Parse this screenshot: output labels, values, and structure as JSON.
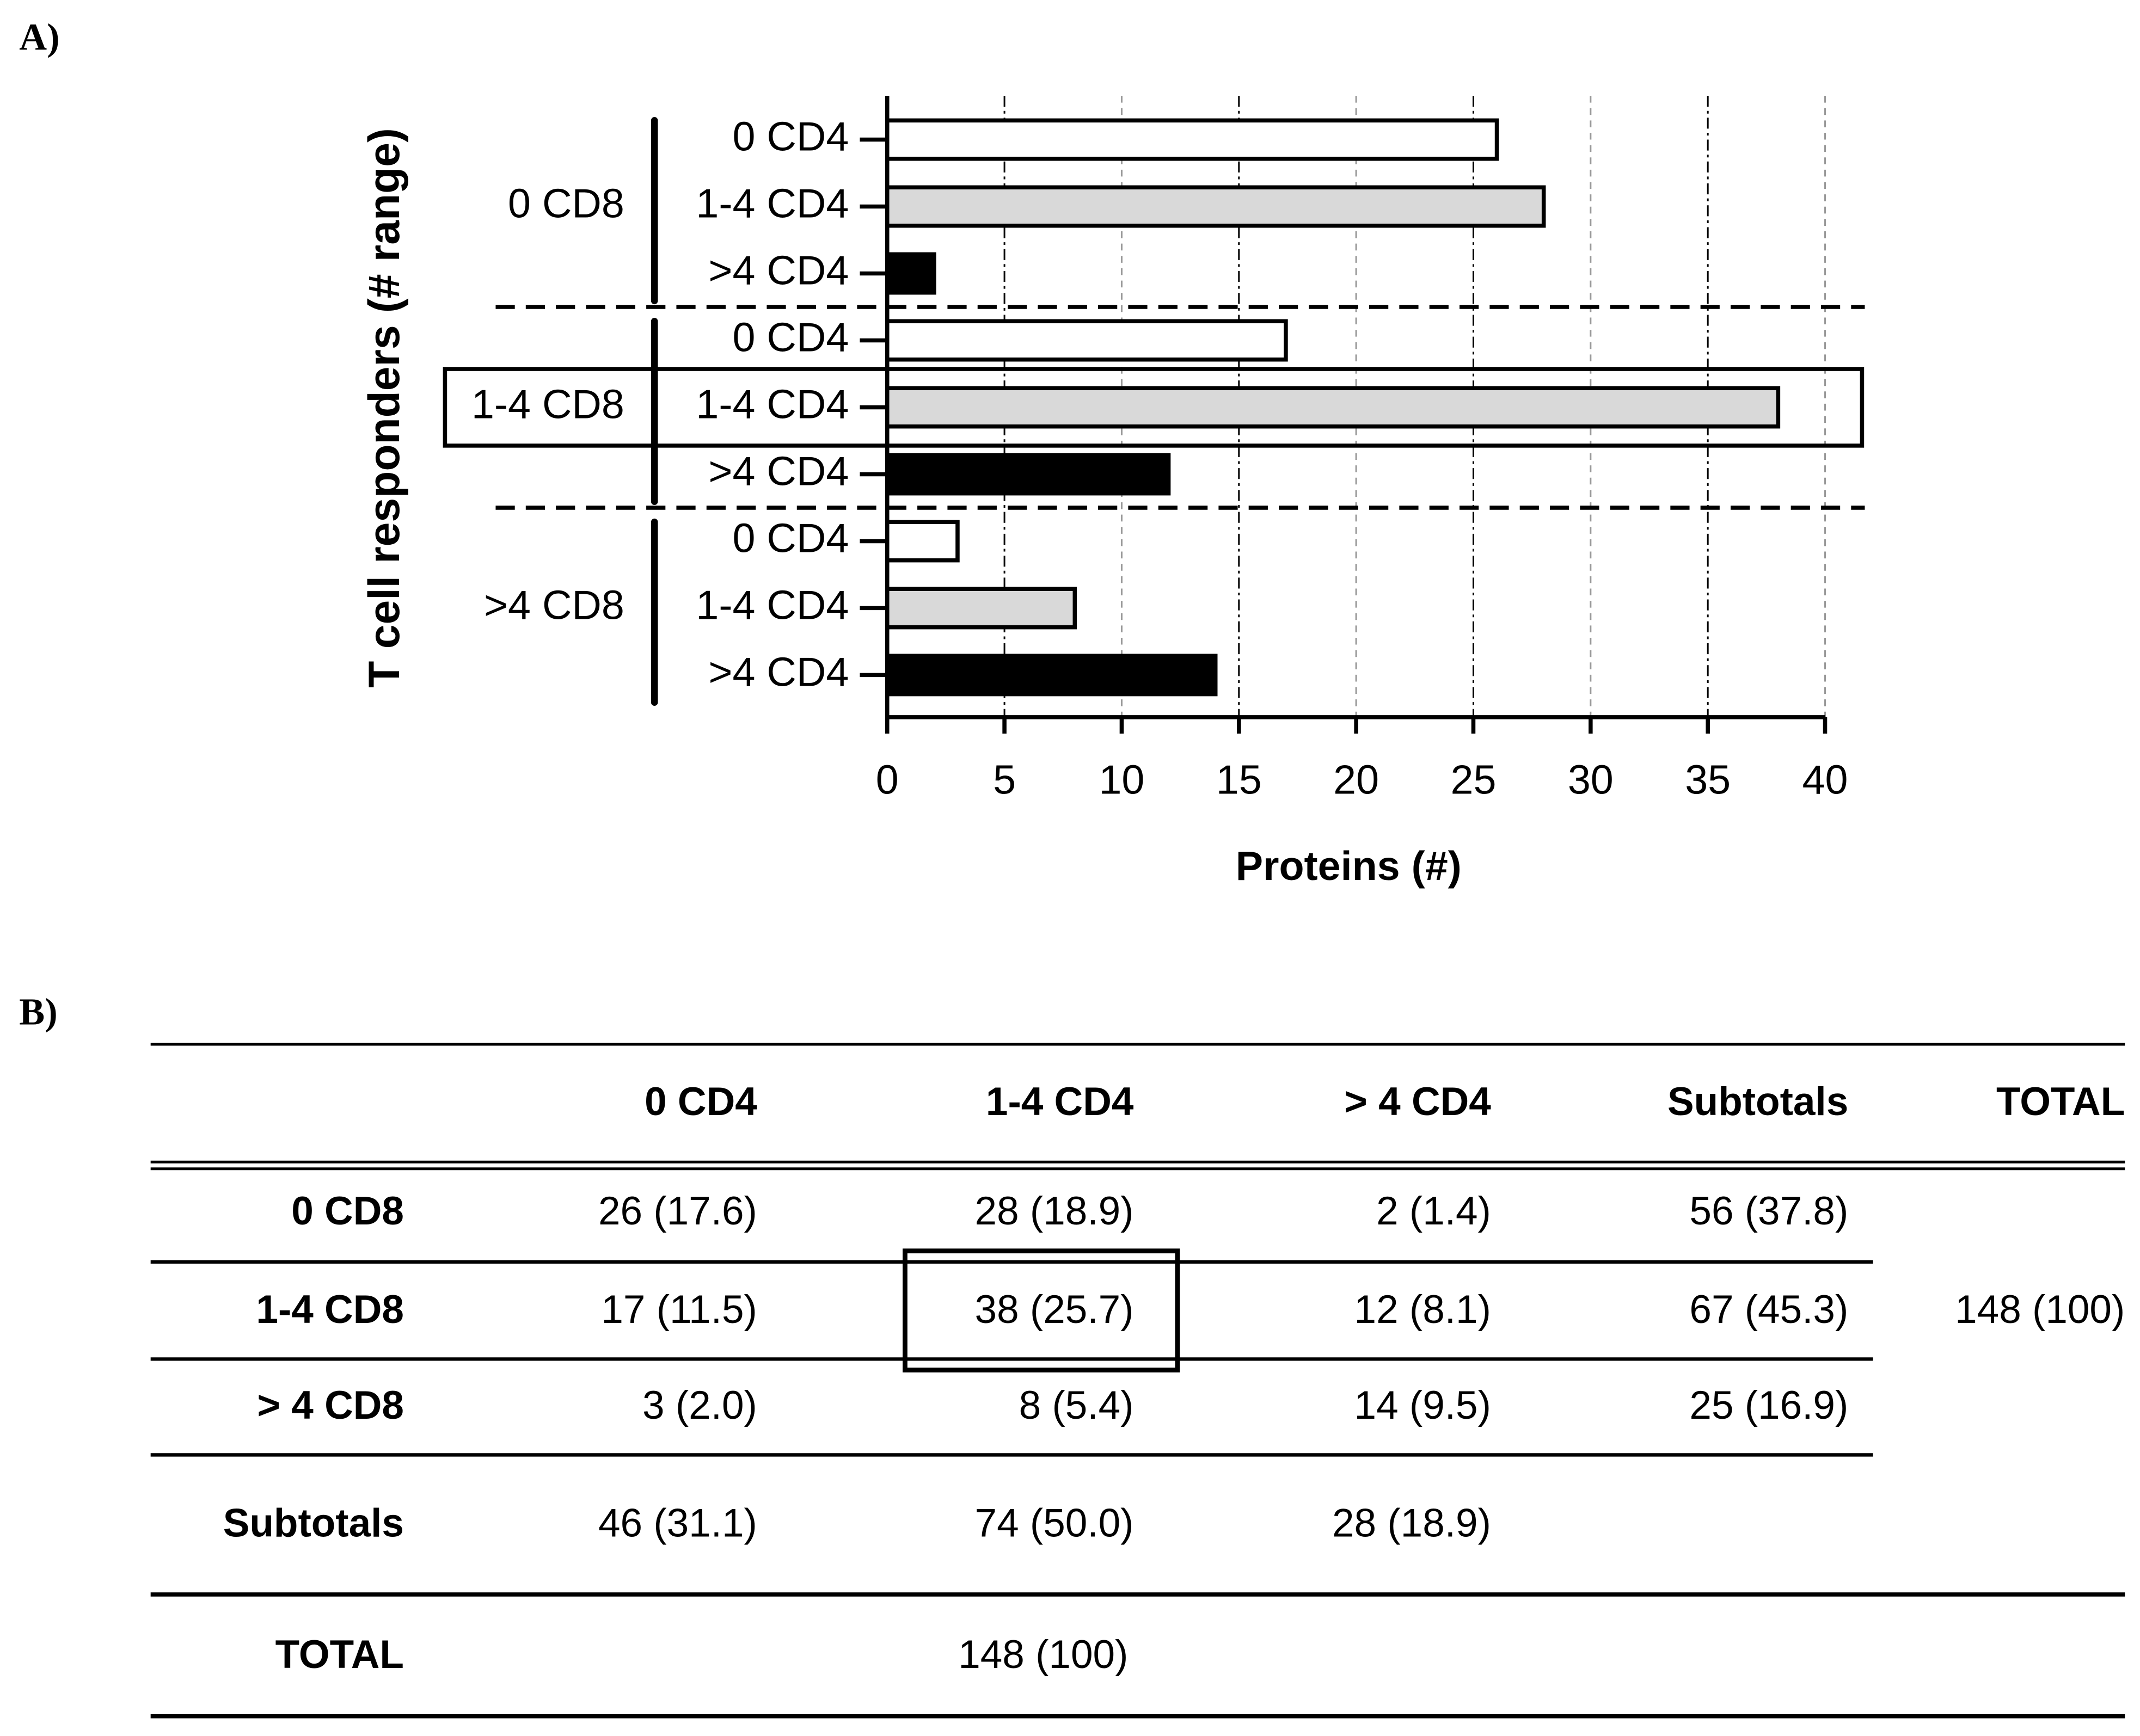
{
  "panel_labels": {
    "a": "A)",
    "b": "B)"
  },
  "chart_data": {
    "type": "bar",
    "orientation": "horizontal",
    "y_label": "T cell responders (# range)",
    "x_label": "Proteins (#)",
    "categories": [
      "0 CD4",
      "1-4 CD4",
      ">4 CD4"
    ],
    "colors": [
      "#ffffff",
      "#d9d9d9",
      "#000000"
    ],
    "series": [
      {
        "name": "0 CD8",
        "values": [
          26,
          28,
          2
        ]
      },
      {
        "name": "1-4 CD8",
        "values": [
          17,
          38,
          12
        ]
      },
      {
        "name": ">4 CD8",
        "values": [
          3,
          8,
          14
        ]
      }
    ],
    "xlim": [
      0,
      40
    ],
    "xticks": [
      0,
      5,
      10,
      15,
      20,
      25,
      30,
      35,
      40
    ],
    "grid": true
  },
  "table": {
    "columns": [
      "0 CD4",
      "1-4 CD4",
      "> 4 CD4",
      "Subtotals",
      "TOTAL"
    ],
    "rows": [
      {
        "label": "0 CD8",
        "cells": [
          "26 (17.6)",
          "28 (18.9)",
          "2 (1.4)",
          "56 (37.8)"
        ]
      },
      {
        "label": "1-4 CD8",
        "cells": [
          "17 (11.5)",
          "38 (25.7)",
          "12 (8.1)",
          "67 (45.3)"
        ]
      },
      {
        "label": "> 4 CD8",
        "cells": [
          "3 (2.0)",
          "8 (5.4)",
          "14 (9.5)",
          "25 (16.9)"
        ]
      }
    ],
    "grand_total": "148 (100)",
    "subtotals": {
      "label": "Subtotals",
      "cells": [
        "46 (31.1)",
        "74 (50.0)",
        "28 (18.9)"
      ]
    },
    "total": {
      "label": "TOTAL",
      "value": "148 (100)"
    }
  }
}
